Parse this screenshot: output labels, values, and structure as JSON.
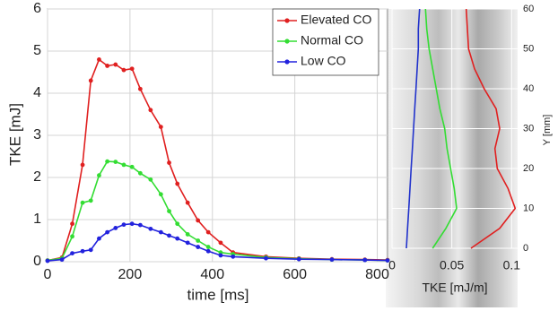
{
  "chart_data": [
    {
      "type": "line",
      "xlabel": "time [ms]",
      "ylabel": "TKE [mJ]",
      "x": [
        0,
        35,
        60,
        85,
        105,
        125,
        145,
        165,
        185,
        205,
        225,
        250,
        275,
        295,
        315,
        340,
        365,
        390,
        420,
        450,
        530,
        610,
        690,
        770,
        825
      ],
      "series": [
        {
          "name": "Elevated CO",
          "color": "#e02020",
          "values": [
            0.03,
            0.1,
            0.9,
            2.3,
            4.3,
            4.8,
            4.65,
            4.68,
            4.55,
            4.58,
            4.1,
            3.6,
            3.2,
            2.35,
            1.85,
            1.4,
            0.98,
            0.7,
            0.45,
            0.22,
            0.12,
            0.08,
            0.06,
            0.05,
            0.04
          ]
        },
        {
          "name": "Normal CO",
          "color": "#33dd33",
          "values": [
            0.03,
            0.08,
            0.6,
            1.4,
            1.45,
            2.05,
            2.38,
            2.37,
            2.3,
            2.25,
            2.1,
            1.95,
            1.6,
            1.2,
            0.9,
            0.65,
            0.5,
            0.35,
            0.22,
            0.18,
            0.1,
            0.07,
            0.05,
            0.04,
            0.03
          ]
        },
        {
          "name": "Low CO",
          "color": "#2222dd",
          "values": [
            0.02,
            0.05,
            0.2,
            0.25,
            0.28,
            0.55,
            0.7,
            0.8,
            0.88,
            0.9,
            0.87,
            0.78,
            0.7,
            0.62,
            0.55,
            0.45,
            0.35,
            0.25,
            0.15,
            0.12,
            0.08,
            0.06,
            0.05,
            0.04,
            0.03
          ]
        }
      ],
      "xlim": [
        0,
        825
      ],
      "xticks": [
        0,
        200,
        400,
        600,
        800
      ],
      "ylim": [
        0,
        6
      ],
      "yticks": [
        0,
        1,
        2,
        3,
        4,
        5,
        6
      ],
      "grid": true,
      "markers": true,
      "legend": "upper right"
    },
    {
      "type": "line",
      "orientation": "vertical",
      "xlabel": "TKE [mJ/m]",
      "ylabel": "Y [mm]",
      "y": [
        0,
        5,
        10,
        15,
        20,
        25,
        30,
        35,
        40,
        45,
        50,
        55,
        60
      ],
      "series": [
        {
          "color": "#2233cc",
          "values": [
            0.012,
            0.013,
            0.014,
            0.015,
            0.016,
            0.017,
            0.018,
            0.019,
            0.02,
            0.021,
            0.022,
            0.022,
            0.023
          ]
        },
        {
          "color": "#33dd33",
          "values": [
            0.034,
            0.045,
            0.054,
            0.052,
            0.049,
            0.046,
            0.044,
            0.04,
            0.037,
            0.034,
            0.031,
            0.029,
            0.028
          ]
        },
        {
          "color": "#e02020",
          "values": [
            0.066,
            0.09,
            0.103,
            0.097,
            0.088,
            0.086,
            0.09,
            0.087,
            0.077,
            0.069,
            0.064,
            0.063,
            0.062
          ]
        }
      ],
      "xlim": [
        0,
        0.105
      ],
      "xticks": [
        0,
        0.05,
        0.1
      ],
      "ylim": [
        0,
        60
      ],
      "yticks": [
        0,
        10,
        20,
        30,
        40,
        50,
        60
      ],
      "grid": true
    }
  ]
}
